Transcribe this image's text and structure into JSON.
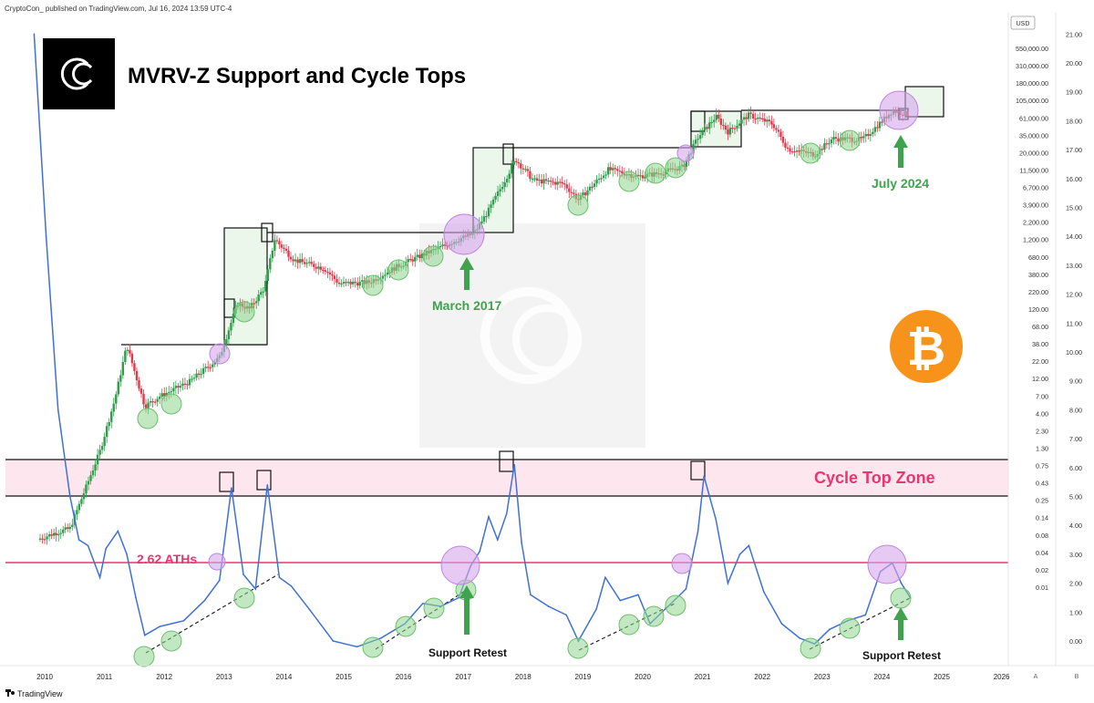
{
  "header": {
    "publisher": "CryptoCon_ published on TradingView.com, Jul 16, 2024 13:59 UTC-4"
  },
  "footer": {
    "brand": "TradingView",
    "mode_a": "A",
    "mode_b": "B"
  },
  "colors": {
    "candle_up": "#2e9e4a",
    "candle_down": "#e0394b",
    "mvrv_line": "#3f6fd8",
    "ath_line": "#e8366f",
    "zone_fill": "#fde6ee",
    "green_circle": "#8fd58f",
    "purple_circle": "#d6a6ec",
    "bitcoin_orange": "#f7931a",
    "arrow_green": "#3fa34d"
  },
  "chart_data": {
    "type": "line",
    "title": "MVRV-Z Support and Cycle Tops",
    "price_axis_unit": "USD",
    "price_ticks": [
      "550,000.00",
      "310,000.00",
      "180,000.00",
      "105,000.00",
      "61,000.00",
      "35,000.00",
      "20,000.00",
      "11,500.00",
      "6,700.00",
      "3,900.00",
      "2,200.00",
      "1,200.00",
      "680.00",
      "380.00",
      "220.00",
      "120.00",
      "68.00",
      "38.00",
      "22.00",
      "12.00",
      "7.00",
      "4.00",
      "2.30",
      "1.30",
      "0.75",
      "0.43",
      "0.25",
      "0.14",
      "0.08",
      "0.04",
      "0.02",
      "0.01"
    ],
    "mvrv_ticks": [
      "21.00",
      "20.00",
      "19.00",
      "18.00",
      "17.00",
      "16.00",
      "15.00",
      "14.00",
      "13.00",
      "12.00",
      "11.00",
      "10.00",
      "9.00",
      "8.00",
      "7.00",
      "6.00",
      "5.00",
      "4.00",
      "3.00",
      "2.00",
      "1.00",
      "0.00"
    ],
    "x_ticks": [
      "2010",
      "2011",
      "2012",
      "2013",
      "2014",
      "2015",
      "2016",
      "2017",
      "2018",
      "2019",
      "2020",
      "2021",
      "2022",
      "2023",
      "2024",
      "2025",
      "2026"
    ],
    "ath_line_value": 2.62,
    "cycle_top_zone": [
      5.0,
      6.2
    ],
    "annotations": {
      "ath_label": "2.62 ATHs",
      "zone_label": "Cycle Top Zone",
      "march_2017": "March 2017",
      "july_2024": "July 2024",
      "support_retest_1": "Support Retest",
      "support_retest_2": "Support Retest"
    },
    "price_series": [
      {
        "x": 2010.0,
        "y": 0.05
      },
      {
        "x": 2010.25,
        "y": 0.06
      },
      {
        "x": 2010.5,
        "y": 0.07
      },
      {
        "x": 2010.75,
        "y": 0.25
      },
      {
        "x": 2011.0,
        "y": 0.9
      },
      {
        "x": 2011.25,
        "y": 5
      },
      {
        "x": 2011.45,
        "y": 30
      },
      {
        "x": 2011.75,
        "y": 4
      },
      {
        "x": 2012.0,
        "y": 5.5
      },
      {
        "x": 2012.5,
        "y": 9
      },
      {
        "x": 2013.0,
        "y": 20
      },
      {
        "x": 2013.3,
        "y": 120
      },
      {
        "x": 2013.5,
        "y": 100
      },
      {
        "x": 2013.75,
        "y": 200
      },
      {
        "x": 2013.92,
        "y": 1000
      },
      {
        "x": 2014.25,
        "y": 500
      },
      {
        "x": 2014.75,
        "y": 380
      },
      {
        "x": 2015.0,
        "y": 230
      },
      {
        "x": 2015.5,
        "y": 240
      },
      {
        "x": 2016.0,
        "y": 420
      },
      {
        "x": 2016.5,
        "y": 650
      },
      {
        "x": 2017.0,
        "y": 1000
      },
      {
        "x": 2017.25,
        "y": 1200
      },
      {
        "x": 2017.5,
        "y": 2600
      },
      {
        "x": 2017.75,
        "y": 6500
      },
      {
        "x": 2017.95,
        "y": 14000
      },
      {
        "x": 2018.25,
        "y": 7000
      },
      {
        "x": 2018.75,
        "y": 6300
      },
      {
        "x": 2019.0,
        "y": 3700
      },
      {
        "x": 2019.5,
        "y": 10000
      },
      {
        "x": 2020.0,
        "y": 8000
      },
      {
        "x": 2020.3,
        "y": 8700
      },
      {
        "x": 2020.75,
        "y": 11000
      },
      {
        "x": 2021.0,
        "y": 29000
      },
      {
        "x": 2021.3,
        "y": 58000
      },
      {
        "x": 2021.5,
        "y": 35000
      },
      {
        "x": 2021.85,
        "y": 61000
      },
      {
        "x": 2022.25,
        "y": 45000
      },
      {
        "x": 2022.5,
        "y": 20000
      },
      {
        "x": 2022.95,
        "y": 16500
      },
      {
        "x": 2023.25,
        "y": 28000
      },
      {
        "x": 2023.75,
        "y": 27000
      },
      {
        "x": 2024.0,
        "y": 43000
      },
      {
        "x": 2024.25,
        "y": 70000
      },
      {
        "x": 2024.5,
        "y": 62000
      }
    ],
    "mvrv_series": [
      {
        "x": 2009.9,
        "y": 21.0
      },
      {
        "x": 2010.1,
        "y": 14
      },
      {
        "x": 2010.3,
        "y": 8
      },
      {
        "x": 2010.5,
        "y": 5
      },
      {
        "x": 2010.65,
        "y": 3.5
      },
      {
        "x": 2010.8,
        "y": 3.3
      },
      {
        "x": 2011.0,
        "y": 2.2
      },
      {
        "x": 2011.1,
        "y": 3.2
      },
      {
        "x": 2011.3,
        "y": 3.8
      },
      {
        "x": 2011.45,
        "y": 3.0
      },
      {
        "x": 2011.6,
        "y": 1.5
      },
      {
        "x": 2011.75,
        "y": 0.2
      },
      {
        "x": 2012.0,
        "y": 0.5
      },
      {
        "x": 2012.4,
        "y": 0.7
      },
      {
        "x": 2012.75,
        "y": 1.4
      },
      {
        "x": 2013.0,
        "y": 2.1
      },
      {
        "x": 2013.2,
        "y": 5.3
      },
      {
        "x": 2013.4,
        "y": 2.3
      },
      {
        "x": 2013.6,
        "y": 1.8
      },
      {
        "x": 2013.8,
        "y": 5.4
      },
      {
        "x": 2014.0,
        "y": 2.2
      },
      {
        "x": 2014.2,
        "y": 1.9
      },
      {
        "x": 2014.5,
        "y": 1.1
      },
      {
        "x": 2014.9,
        "y": 0.0
      },
      {
        "x": 2015.3,
        "y": -0.2
      },
      {
        "x": 2015.7,
        "y": 0.1
      },
      {
        "x": 2016.1,
        "y": 0.6
      },
      {
        "x": 2016.4,
        "y": 1.3
      },
      {
        "x": 2016.7,
        "y": 1.2
      },
      {
        "x": 2017.0,
        "y": 1.5
      },
      {
        "x": 2017.2,
        "y": 2.6
      },
      {
        "x": 2017.35,
        "y": 3.1
      },
      {
        "x": 2017.5,
        "y": 4.3
      },
      {
        "x": 2017.65,
        "y": 3.5
      },
      {
        "x": 2017.8,
        "y": 4.4
      },
      {
        "x": 2017.93,
        "y": 6.1
      },
      {
        "x": 2018.05,
        "y": 3.4
      },
      {
        "x": 2018.2,
        "y": 1.6
      },
      {
        "x": 2018.5,
        "y": 1.2
      },
      {
        "x": 2018.8,
        "y": 0.9
      },
      {
        "x": 2019.0,
        "y": 0.0
      },
      {
        "x": 2019.3,
        "y": 1.1
      },
      {
        "x": 2019.45,
        "y": 2.2
      },
      {
        "x": 2019.7,
        "y": 1.4
      },
      {
        "x": 2020.0,
        "y": 1.6
      },
      {
        "x": 2020.2,
        "y": 0.6
      },
      {
        "x": 2020.5,
        "y": 1.2
      },
      {
        "x": 2020.8,
        "y": 1.8
      },
      {
        "x": 2021.0,
        "y": 3.8
      },
      {
        "x": 2021.1,
        "y": 5.7
      },
      {
        "x": 2021.3,
        "y": 4.2
      },
      {
        "x": 2021.5,
        "y": 2.0
      },
      {
        "x": 2021.7,
        "y": 3.0
      },
      {
        "x": 2021.85,
        "y": 3.3
      },
      {
        "x": 2022.1,
        "y": 1.7
      },
      {
        "x": 2022.4,
        "y": 0.6
      },
      {
        "x": 2022.7,
        "y": 0.1
      },
      {
        "x": 2022.95,
        "y": -0.1
      },
      {
        "x": 2023.2,
        "y": 0.4
      },
      {
        "x": 2023.5,
        "y": 0.7
      },
      {
        "x": 2023.8,
        "y": 0.9
      },
      {
        "x": 2024.05,
        "y": 2.4
      },
      {
        "x": 2024.25,
        "y": 2.7
      },
      {
        "x": 2024.4,
        "y": 2.0
      },
      {
        "x": 2024.55,
        "y": 1.5
      }
    ]
  }
}
